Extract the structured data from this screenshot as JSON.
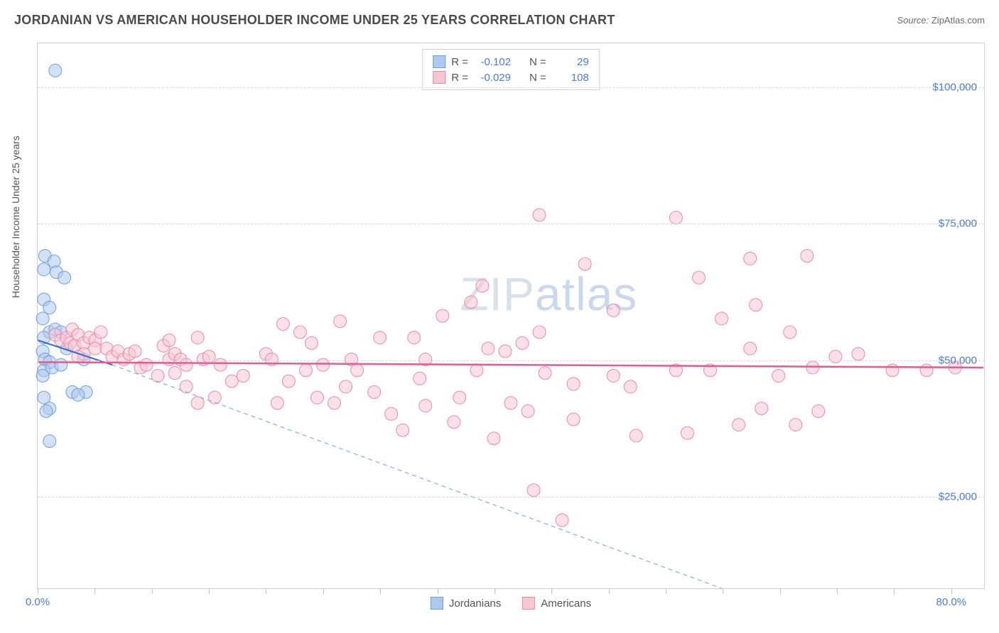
{
  "header": {
    "title": "JORDANIAN VS AMERICAN HOUSEHOLDER INCOME UNDER 25 YEARS CORRELATION CHART",
    "source_label": "Source:",
    "source_value": "ZipAtlas.com"
  },
  "chart": {
    "type": "scatter",
    "watermark": "ZIPatlas",
    "y_axis_label": "Householder Income Under 25 years",
    "background_color": "#ffffff",
    "grid_color": "#d8d8d8",
    "border_color": "#d0d0d0",
    "xlim": [
      0,
      83
    ],
    "ylim": [
      8000,
      108000
    ],
    "y_ticks": [
      {
        "v": 25000,
        "label": "$25,000"
      },
      {
        "v": 50000,
        "label": "$50,000"
      },
      {
        "v": 75000,
        "label": "$75,000"
      },
      {
        "v": 100000,
        "label": "$100,000"
      }
    ],
    "x_tick_positions": [
      0,
      5,
      10,
      15,
      20,
      25,
      30,
      35,
      40,
      45,
      50,
      55,
      60,
      65,
      70,
      75,
      80
    ],
    "x_labels": [
      {
        "v": 0,
        "label": "0.0%"
      },
      {
        "v": 80,
        "label": "80.0%"
      }
    ],
    "series": [
      {
        "name": "Jordanians",
        "marker_color": "#aec9ed",
        "marker_stroke": "#6f9fde",
        "marker_opacity": 0.55,
        "marker_radius": 9,
        "line_color": "#2e6bd0",
        "line_width": 2,
        "dash_color": "#8fb1e0",
        "trend": {
          "x1": 0,
          "y1": 53500,
          "x2": 6.5,
          "y2": 49000
        },
        "dash": {
          "x1": 6.5,
          "y1": 49000,
          "x2": 60,
          "y2": 8000
        },
        "points": [
          [
            1.5,
            103000
          ],
          [
            0.6,
            69000
          ],
          [
            1.4,
            68000
          ],
          [
            0.5,
            66500
          ],
          [
            1.6,
            66000
          ],
          [
            2.3,
            65000
          ],
          [
            0.5,
            61000
          ],
          [
            1.0,
            59500
          ],
          [
            0.4,
            57500
          ],
          [
            1.0,
            55000
          ],
          [
            1.5,
            55500
          ],
          [
            2.0,
            55000
          ],
          [
            0.5,
            54000
          ],
          [
            0.4,
            51500
          ],
          [
            0.6,
            50000
          ],
          [
            1.0,
            49500
          ],
          [
            0.5,
            48000
          ],
          [
            0.4,
            47000
          ],
          [
            1.2,
            48500
          ],
          [
            2.0,
            49000
          ],
          [
            2.5,
            52000
          ],
          [
            4.0,
            50000
          ],
          [
            3.0,
            44000
          ],
          [
            4.2,
            44000
          ],
          [
            3.5,
            43500
          ],
          [
            0.5,
            43000
          ],
          [
            1.0,
            41000
          ],
          [
            0.7,
            40500
          ],
          [
            1.0,
            35000
          ]
        ]
      },
      {
        "name": "Americans",
        "marker_color": "#f7c6d3",
        "marker_stroke": "#e88ba8",
        "marker_opacity": 0.55,
        "marker_radius": 9,
        "line_color": "#e65a8f",
        "line_width": 2.5,
        "trend": {
          "x1": 0,
          "y1": 49500,
          "x2": 83,
          "y2": 48500
        },
        "points": [
          [
            1.5,
            54500
          ],
          [
            2.0,
            53500
          ],
          [
            2.5,
            54000
          ],
          [
            2.8,
            53000
          ],
          [
            3.0,
            55500
          ],
          [
            3.5,
            54500
          ],
          [
            3.2,
            52500
          ],
          [
            4.0,
            53000
          ],
          [
            4.5,
            54000
          ],
          [
            5.0,
            53500
          ],
          [
            5.5,
            55000
          ],
          [
            5.0,
            52000
          ],
          [
            4.0,
            51000
          ],
          [
            3.5,
            50500
          ],
          [
            6.0,
            52000
          ],
          [
            6.5,
            50500
          ],
          [
            7.0,
            51500
          ],
          [
            7.5,
            50000
          ],
          [
            8.0,
            51000
          ],
          [
            8.5,
            51500
          ],
          [
            9.0,
            48500
          ],
          [
            9.5,
            49000
          ],
          [
            10.5,
            47000
          ],
          [
            11.5,
            50000
          ],
          [
            11.0,
            52500
          ],
          [
            11.5,
            53500
          ],
          [
            12.0,
            51000
          ],
          [
            12.5,
            50000
          ],
          [
            13.0,
            49000
          ],
          [
            12.0,
            47500
          ],
          [
            13.0,
            45000
          ],
          [
            14.0,
            54000
          ],
          [
            14.5,
            50000
          ],
          [
            15.0,
            50500
          ],
          [
            16.0,
            49000
          ],
          [
            17.0,
            46000
          ],
          [
            14.0,
            42000
          ],
          [
            15.5,
            43000
          ],
          [
            18.0,
            47000
          ],
          [
            20.0,
            51000
          ],
          [
            20.5,
            50000
          ],
          [
            21.0,
            42000
          ],
          [
            21.5,
            56500
          ],
          [
            23.0,
            55000
          ],
          [
            22.0,
            46000
          ],
          [
            23.5,
            48000
          ],
          [
            25.0,
            49000
          ],
          [
            24.0,
            53000
          ],
          [
            26.5,
            57000
          ],
          [
            27.5,
            50000
          ],
          [
            24.5,
            43000
          ],
          [
            26.0,
            42000
          ],
          [
            27.0,
            45000
          ],
          [
            28.0,
            48000
          ],
          [
            30.0,
            54000
          ],
          [
            33.0,
            54000
          ],
          [
            29.5,
            44000
          ],
          [
            31.0,
            40000
          ],
          [
            33.5,
            46500
          ],
          [
            34.0,
            50000
          ],
          [
            37.0,
            43000
          ],
          [
            38.5,
            48000
          ],
          [
            35.5,
            58000
          ],
          [
            38.0,
            60500
          ],
          [
            34.0,
            41500
          ],
          [
            36.5,
            38500
          ],
          [
            40.0,
            35500
          ],
          [
            32.0,
            37000
          ],
          [
            41.5,
            42000
          ],
          [
            41.0,
            51500
          ],
          [
            42.5,
            53000
          ],
          [
            44.5,
            47500
          ],
          [
            43.0,
            40500
          ],
          [
            39.0,
            63500
          ],
          [
            44.0,
            55000
          ],
          [
            44.0,
            76500
          ],
          [
            47.0,
            45500
          ],
          [
            47.0,
            39000
          ],
          [
            48.0,
            67500
          ],
          [
            50.5,
            59000
          ],
          [
            50.5,
            47000
          ],
          [
            52.0,
            45000
          ],
          [
            52.5,
            36000
          ],
          [
            56.0,
            48000
          ],
          [
            57.0,
            36500
          ],
          [
            56.0,
            76000
          ],
          [
            58.0,
            65000
          ],
          [
            59.0,
            48000
          ],
          [
            60.0,
            57500
          ],
          [
            62.5,
            68500
          ],
          [
            62.5,
            52000
          ],
          [
            63.5,
            41000
          ],
          [
            65.0,
            47000
          ],
          [
            61.5,
            38000
          ],
          [
            43.5,
            26000
          ],
          [
            46.0,
            20500
          ],
          [
            67.5,
            69000
          ],
          [
            66.0,
            55000
          ],
          [
            66.5,
            38000
          ],
          [
            68.0,
            48500
          ],
          [
            70.0,
            50500
          ],
          [
            72.0,
            51000
          ],
          [
            75.0,
            48000
          ],
          [
            78.0,
            48000
          ],
          [
            80.5,
            48500
          ],
          [
            63.0,
            60000
          ],
          [
            68.5,
            40500
          ],
          [
            39.5,
            52000
          ]
        ]
      }
    ],
    "stats_box": {
      "rows": [
        {
          "swatch_fill": "#aec9ed",
          "swatch_stroke": "#6f9fde",
          "R_label": "R =",
          "R": "-0.102",
          "N_label": "N =",
          "N": "29"
        },
        {
          "swatch_fill": "#f7c6d3",
          "swatch_stroke": "#e88ba8",
          "R_label": "R =",
          "R": "-0.029",
          "N_label": "N =",
          "N": "108"
        }
      ]
    },
    "legend": [
      {
        "swatch_fill": "#aec9ed",
        "swatch_stroke": "#6f9fde",
        "label": "Jordanians"
      },
      {
        "swatch_fill": "#f7c6d3",
        "swatch_stroke": "#e88ba8",
        "label": "Americans"
      }
    ]
  }
}
